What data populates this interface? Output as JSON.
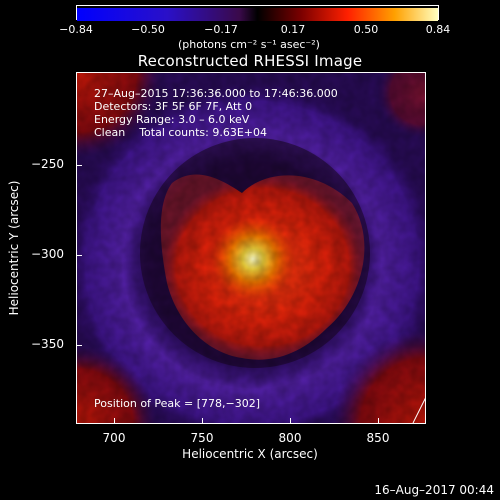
{
  "colorbar": {
    "ticks": [
      "−0.84",
      "−0.50",
      "−0.17",
      "0.17",
      "0.50",
      "0.84"
    ],
    "unit": "(photons cm⁻² s⁻¹ asec⁻²)"
  },
  "title": "Reconstructed RHESSI Image",
  "info": {
    "line1": "27–Aug–2015 17:36:36.000 to 17:46:36.000",
    "line2": "Detectors: 3F 5F 6F 7F, Att 0",
    "line3": "Energy Range: 3.0 – 6.0 keV",
    "line4": "Clean    Total counts: 9.63E+04",
    "peak": "Position of Peak = [778,−302]"
  },
  "axes": {
    "xlabel": "Heliocentric X (arcsec)",
    "ylabel": "Heliocentric Y (arcsec)",
    "xticks": [
      "700",
      "750",
      "800",
      "850"
    ],
    "yticks": [
      "−250",
      "−300",
      "−350"
    ]
  },
  "timestamp": "16–Aug–2017 00:44"
}
